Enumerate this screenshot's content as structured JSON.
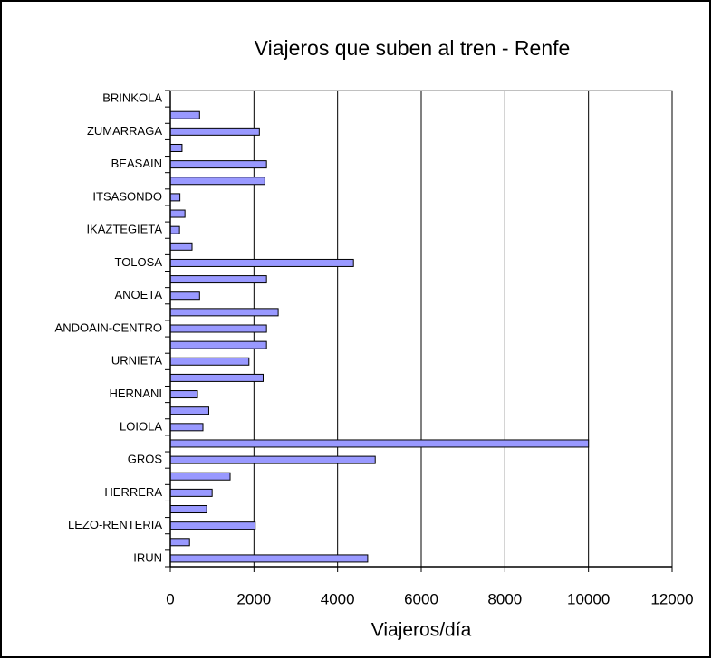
{
  "chart_data": {
    "type": "bar",
    "orientation": "horizontal",
    "title": "Viajeros que suben al tren - Renfe",
    "x_label": "Viajeros/día",
    "categories": [
      "BRINKOLA",
      null,
      "ZUMARRAGA",
      null,
      "BEASAIN",
      null,
      "ITSASONDO",
      null,
      "IKAZTEGIETA",
      null,
      "TOLOSA",
      null,
      "ANOETA",
      null,
      "ANDOAIN-CENTRO",
      null,
      "URNIETA",
      null,
      "HERNANI",
      null,
      "LOIOLA",
      null,
      "GROS",
      null,
      "HERRERA",
      null,
      "LEZO-RENTERIA",
      null,
      "IRUN"
    ],
    "values": [
      0,
      700,
      2130,
      280,
      2300,
      2260,
      230,
      350,
      220,
      520,
      4380,
      2300,
      700,
      2580,
      2300,
      2300,
      1880,
      2220,
      650,
      920,
      780,
      10000,
      4900,
      1430,
      1000,
      870,
      2030,
      460,
      4720
    ],
    "color": "#9999ff",
    "xlim": [
      0,
      12000
    ],
    "xticks": [
      0,
      2000,
      4000,
      6000,
      8000,
      10000,
      12000
    ],
    "grid": true
  }
}
